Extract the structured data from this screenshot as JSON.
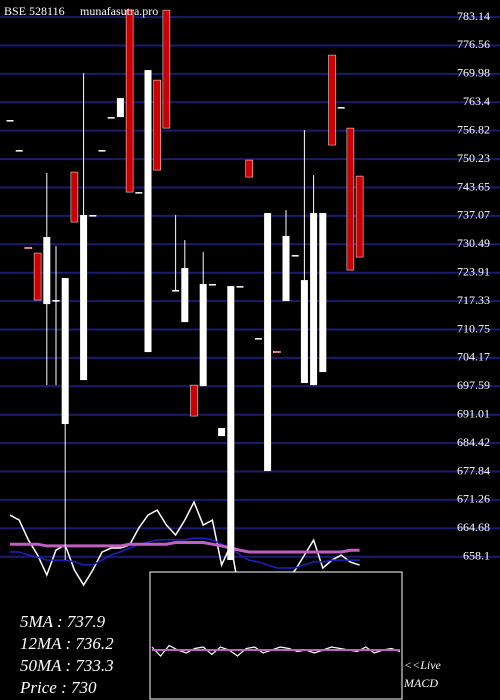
{
  "chart_data": {
    "type": "candlestick",
    "title": "BSE 528116",
    "subtitle": "munafasutra.pro",
    "ylim": [
      624.9,
      787.1
    ],
    "yticks": [
      783.14,
      776.56,
      769.98,
      763.4,
      756.82,
      750.23,
      743.65,
      737.07,
      730.49,
      723.91,
      717.33,
      710.75,
      704.17,
      697.59,
      691.01,
      684.42,
      677.84,
      671.26,
      664.68,
      658.1
    ],
    "grid": true,
    "grid_color": "#1c1c6e",
    "up_color": "#ffffff",
    "down_color": "#cc0000",
    "ohlc": [
      [
        759.28,
        759.28,
        759.28,
        759.28
      ],
      [
        752.32,
        752.32,
        752.32,
        752.32
      ],
      [
        729.8,
        729.8,
        729.6,
        729.6
      ],
      [
        728.46,
        728.46,
        717.57,
        717.57
      ],
      [
        716.64,
        747.0,
        697.87,
        732.17
      ],
      [
        717.57,
        730.08,
        697.87,
        717.57
      ],
      [
        688.84,
        722.67,
        657.33,
        722.67
      ],
      [
        747.23,
        747.23,
        735.64,
        735.64
      ],
      [
        699.03,
        770.17,
        699.03,
        737.27
      ],
      [
        737.27,
        737.27,
        737.27,
        737.27
      ],
      [
        752.32,
        752.32,
        752.32,
        752.32
      ],
      [
        759.97,
        759.97,
        759.97,
        759.97
      ],
      [
        759.97,
        764.37,
        759.97,
        764.37
      ],
      [
        784.76,
        784.76,
        742.59,
        742.59
      ],
      [
        742.59,
        742.59,
        742.59,
        742.59
      ],
      [
        705.52,
        770.86,
        705.52,
        770.86
      ],
      [
        768.54,
        768.54,
        747.69,
        747.69
      ],
      [
        784.76,
        784.76,
        757.42,
        757.42
      ],
      [
        719.89,
        737.27,
        719.89,
        719.89
      ],
      [
        712.47,
        731.47,
        712.47,
        724.98
      ],
      [
        697.87,
        697.87,
        690.69,
        690.69
      ],
      [
        697.64,
        728.69,
        697.64,
        721.28
      ],
      [
        721.28,
        721.28,
        721.28,
        721.28
      ],
      [
        686.06,
        687.91,
        686.06,
        687.91
      ],
      [
        657.33,
        720.81,
        657.33,
        720.81
      ],
      [
        720.81,
        720.81,
        720.81,
        720.81
      ],
      [
        750.01,
        750.01,
        746.07,
        746.07
      ],
      [
        708.76,
        708.76,
        708.76,
        708.76
      ],
      [
        677.95,
        737.73,
        677.95,
        737.73
      ],
      [
        705.7,
        705.7,
        705.52,
        705.52
      ],
      [
        717.34,
        738.42,
        717.34,
        732.4
      ],
      [
        728.0,
        728.0,
        728.0,
        728.0
      ],
      [
        698.34,
        756.96,
        698.34,
        722.2
      ],
      [
        697.87,
        746.53,
        697.87,
        737.73
      ],
      [
        700.89,
        737.73,
        700.89,
        737.73
      ],
      [
        774.34,
        774.34,
        753.48,
        753.48
      ],
      [
        762.29,
        762.29,
        762.29,
        762.29
      ],
      [
        757.42,
        757.42,
        724.52,
        724.52
      ],
      [
        746.3,
        746.3,
        727.53,
        727.53
      ]
    ],
    "overlays": [
      {
        "color": "#ffffff",
        "values": [
          667.75,
          666.59,
          661.96,
          658.48,
          653.85,
          659.65,
          660.81,
          655.01,
          651.54,
          655.01,
          659.18,
          660.11,
          660.11,
          660.81,
          664.74,
          667.75,
          668.91,
          665.44,
          663.12,
          666.59,
          670.76,
          665.44,
          666.59,
          656.17,
          660.81,
          649.22,
          653.16,
          652.23,
          648.06,
          648.52,
          652.69,
          655.01,
          658.48,
          661.96,
          655.47,
          657.33,
          658.48,
          656.86,
          656.17
        ]
      },
      {
        "color": "#2020c0",
        "values": [
          659.2,
          659.2,
          658.5,
          658.0,
          657.3,
          657.3,
          657.3,
          656.9,
          656.2,
          656.2,
          657.3,
          658.5,
          659.2,
          660.1,
          661.0,
          661.5,
          662.0,
          662.0,
          662.0,
          662.0,
          662.4,
          662.4,
          662.0,
          661.0,
          660.1,
          658.5,
          657.3,
          656.9,
          656.2,
          655.5,
          655.5,
          655.5,
          656.2,
          656.9,
          656.9,
          657.3,
          657.3,
          657.3,
          657.3
        ]
      },
      {
        "color": "#c060c0",
        "values": [
          661.0,
          661.0,
          661.0,
          661.0,
          660.6,
          660.6,
          660.6,
          660.6,
          660.6,
          660.6,
          660.6,
          660.6,
          660.6,
          661.0,
          661.0,
          661.0,
          661.0,
          661.0,
          661.4,
          661.4,
          661.4,
          661.4,
          661.0,
          660.6,
          660.1,
          659.6,
          659.2,
          659.2,
          659.2,
          659.2,
          659.2,
          659.2,
          659.2,
          659.2,
          659.2,
          659.2,
          659.2,
          659.6,
          659.6
        ]
      }
    ],
    "stats": [
      "5MA : 737.9",
      "12MA : 736.2",
      "50MA : 733.3",
      "Price   : 730"
    ],
    "macd": {
      "label_1": "<<Live",
      "label_2": "MACD",
      "ylim": [
        -1,
        1
      ],
      "line": {
        "color": "#ffffff",
        "values": [
          0.1,
          -0.2,
          0.15,
          0.0,
          -0.1,
          0.05,
          0.1,
          -0.15,
          0.1,
          0.0,
          -0.2,
          0.05,
          0.1,
          -0.1,
          0.0,
          0.1,
          0.05,
          -0.05,
          0.0,
          -0.1,
          0.0,
          0.1,
          0.05,
          0.0,
          -0.05,
          0.1,
          -0.1,
          0.0,
          0.05,
          -0.05
        ]
      },
      "signal": {
        "color": "#c060c0",
        "values": [
          0,
          0,
          0,
          0,
          0,
          0,
          0,
          0,
          0,
          0,
          0,
          0,
          0,
          0,
          0,
          0,
          0,
          0,
          0,
          0,
          0,
          0,
          0,
          0,
          0,
          0,
          0,
          0,
          0,
          0
        ]
      }
    }
  }
}
